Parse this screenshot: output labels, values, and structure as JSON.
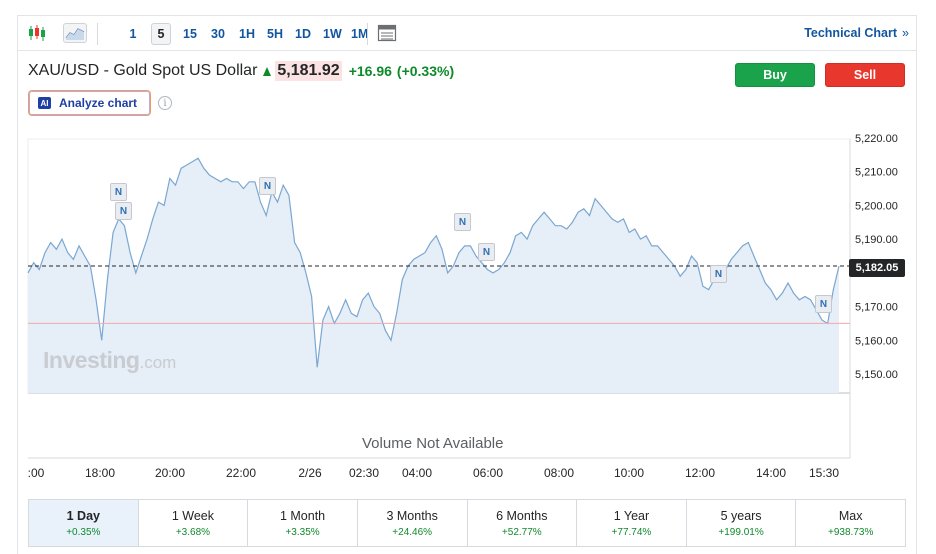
{
  "toolbar": {
    "icons": [
      "candlestick-icon",
      "area-chart-icon",
      "calendar-icon"
    ],
    "timeframes": [
      {
        "label": "1",
        "active": false
      },
      {
        "label": "5",
        "active": true
      },
      {
        "label": "15",
        "active": false
      },
      {
        "label": "30",
        "active": false
      },
      {
        "label": "1H",
        "active": false
      },
      {
        "label": "5H",
        "active": false
      },
      {
        "label": "1D",
        "active": false
      },
      {
        "label": "1W",
        "active": false
      },
      {
        "label": "1M",
        "active": false
      }
    ],
    "technical_chart_label": "Technical Chart",
    "technical_chart_arrow": "»"
  },
  "header": {
    "instrument": "XAU/USD - Gold Spot US Dollar",
    "price": "5,181.92",
    "change": "+16.96",
    "change_pct": "(+0.33%)",
    "buy_label": "Buy",
    "sell_label": "Sell",
    "analyze_label": "Analyze chart",
    "ai_badge": "AI",
    "info_glyph": "i"
  },
  "colors": {
    "positive": "#0e8a2b",
    "line": "#7ba7d2",
    "area": "#e6eef7",
    "prev_close_line": "#f2a9a9",
    "buy": "#1aa34a",
    "sell": "#e8372c"
  },
  "chart": {
    "watermark": "Investing",
    "watermark_suffix": ".com",
    "volume_text": "Volume Not Available",
    "last_price_label": "5,182.05",
    "news_marker": "N"
  },
  "chart_data": {
    "type": "area",
    "y_ticks": [
      "5,220.00",
      "5,210.00",
      "5,200.00",
      "5,190.00",
      "5,170.00",
      "5,160.00",
      "5,150.00"
    ],
    "y_tick_values": [
      5220,
      5210,
      5200,
      5190,
      5170,
      5160,
      5150
    ],
    "x_ticks": [
      ":00",
      "18:00",
      "20:00",
      "22:00",
      "2/26",
      "02:30",
      "04:00",
      "06:00",
      "08:00",
      "10:00",
      "12:00",
      "14:00",
      "15:30"
    ],
    "last_price": 5182.05,
    "prev_close": 5165.0,
    "ylim": [
      5145,
      5222
    ],
    "values": [
      5180,
      5183,
      5181,
      5186,
      5189,
      5187,
      5190,
      5186,
      5184,
      5188,
      5185,
      5182,
      5172,
      5160,
      5178,
      5192,
      5196,
      5194,
      5186,
      5180,
      5185,
      5190,
      5196,
      5201,
      5200,
      5208,
      5206,
      5211,
      5212,
      5213,
      5214,
      5211,
      5209,
      5208,
      5207,
      5208,
      5207,
      5207,
      5205,
      5207,
      5207,
      5201,
      5197,
      5204,
      5201,
      5206,
      5203,
      5189,
      5186,
      5180,
      5173,
      5152,
      5166,
      5170,
      5165,
      5168,
      5172,
      5168,
      5167,
      5172,
      5174,
      5170,
      5168,
      5163,
      5160,
      5168,
      5178,
      5182,
      5184,
      5185,
      5186,
      5189,
      5191,
      5187,
      5180,
      5182,
      5186,
      5188,
      5188,
      5185,
      5183,
      5181,
      5180,
      5181,
      5183,
      5186,
      5191,
      5192,
      5190,
      5194,
      5196,
      5198,
      5196,
      5194,
      5194,
      5193,
      5195,
      5198,
      5199,
      5197,
      5202,
      5200,
      5198,
      5196,
      5195,
      5196,
      5192,
      5193,
      5190,
      5191,
      5188,
      5188,
      5186,
      5184,
      5182,
      5179,
      5181,
      5185,
      5183,
      5176,
      5175,
      5178,
      5181,
      5181,
      5184,
      5186,
      5188,
      5189,
      5185,
      5181,
      5177,
      5175,
      5172,
      5174,
      5177,
      5174,
      5172,
      5173,
      5172,
      5169,
      5166,
      5165,
      5175,
      5182
    ]
  },
  "periods": [
    {
      "label": "1 Day",
      "change": "+0.35%",
      "active": true
    },
    {
      "label": "1 Week",
      "change": "+3.68%",
      "active": false
    },
    {
      "label": "1 Month",
      "change": "+3.35%",
      "active": false
    },
    {
      "label": "3 Months",
      "change": "+24.46%",
      "active": false
    },
    {
      "label": "6 Months",
      "change": "+52.77%",
      "active": false
    },
    {
      "label": "1 Year",
      "change": "+77.74%",
      "active": false
    },
    {
      "label": "5 years",
      "change": "+199.01%",
      "active": false
    },
    {
      "label": "Max",
      "change": "+938.73%",
      "active": false
    }
  ]
}
